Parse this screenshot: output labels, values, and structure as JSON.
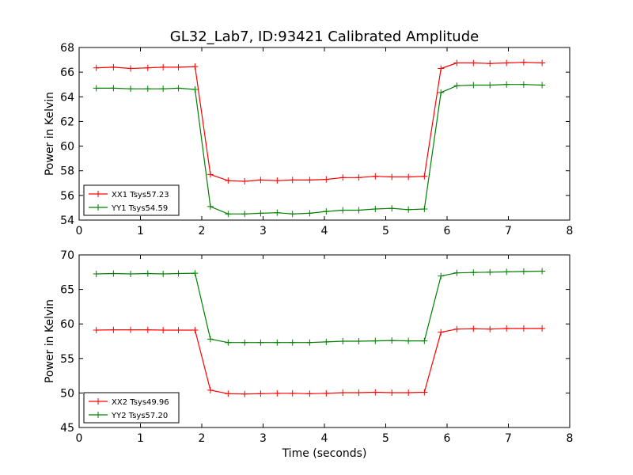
{
  "figure": {
    "title": "GL32_Lab7, ID:93421 Calibrated Amplitude"
  },
  "chart_data": [
    {
      "type": "line",
      "title": "GL32_Lab7, ID:93421 Calibrated Amplitude",
      "xlabel": "",
      "ylabel": "Power in Kelvin",
      "xlim": [
        0,
        8
      ],
      "ylim": [
        54,
        68
      ],
      "xticks": [
        "0",
        "1",
        "2",
        "3",
        "4",
        "5",
        "6",
        "7",
        "8"
      ],
      "yticks": [
        "54",
        "56",
        "58",
        "60",
        "62",
        "64",
        "66",
        "68"
      ],
      "grid": false,
      "legend_position": "lower-left",
      "x": [
        0.28,
        0.56,
        0.84,
        1.12,
        1.37,
        1.62,
        1.89,
        2.14,
        2.43,
        2.7,
        2.96,
        3.23,
        3.48,
        3.76,
        4.03,
        4.3,
        4.56,
        4.83,
        5.1,
        5.37,
        5.63,
        5.9,
        6.16,
        6.43,
        6.7,
        6.97,
        7.25,
        7.55
      ],
      "series": [
        {
          "name": "XX1 Tsys57.23",
          "color": "#ff0000",
          "values": [
            66.35,
            66.4,
            66.3,
            66.35,
            66.4,
            66.4,
            66.45,
            57.7,
            57.2,
            57.15,
            57.25,
            57.2,
            57.25,
            57.25,
            57.3,
            57.45,
            57.45,
            57.55,
            57.5,
            57.5,
            57.55,
            66.3,
            66.75,
            66.75,
            66.7,
            66.75,
            66.8,
            66.75
          ]
        },
        {
          "name": "YY1 Tsys54.59",
          "color": "#008000",
          "values": [
            64.7,
            64.7,
            64.65,
            64.65,
            64.65,
            64.7,
            64.6,
            55.1,
            54.5,
            54.5,
            54.55,
            54.6,
            54.5,
            54.55,
            54.7,
            54.8,
            54.8,
            54.9,
            54.95,
            54.85,
            54.9,
            64.35,
            64.9,
            64.95,
            64.95,
            65.0,
            65.0,
            64.95
          ]
        }
      ]
    },
    {
      "type": "line",
      "title": "",
      "xlabel": "Time (seconds)",
      "ylabel": "Power in Kelvin",
      "xlim": [
        0,
        8
      ],
      "ylim": [
        45,
        70
      ],
      "xticks": [
        "0",
        "1",
        "2",
        "3",
        "4",
        "5",
        "6",
        "7",
        "8"
      ],
      "yticks": [
        "45",
        "50",
        "55",
        "60",
        "65",
        "70"
      ],
      "grid": false,
      "legend_position": "lower-left",
      "x": [
        0.28,
        0.56,
        0.84,
        1.12,
        1.37,
        1.62,
        1.89,
        2.14,
        2.43,
        2.7,
        2.96,
        3.23,
        3.48,
        3.76,
        4.03,
        4.3,
        4.56,
        4.83,
        5.1,
        5.37,
        5.63,
        5.9,
        6.16,
        6.43,
        6.7,
        6.97,
        7.25,
        7.55
      ],
      "series": [
        {
          "name": "XX2 Tsys49.96",
          "color": "#ff0000",
          "values": [
            59.1,
            59.15,
            59.15,
            59.15,
            59.1,
            59.1,
            59.1,
            50.4,
            49.9,
            49.85,
            49.9,
            49.95,
            49.95,
            49.9,
            49.95,
            50.05,
            50.05,
            50.1,
            50.05,
            50.05,
            50.1,
            58.8,
            59.25,
            59.3,
            59.25,
            59.35,
            59.35,
            59.35
          ]
        },
        {
          "name": "YY2 Tsys57.20",
          "color": "#008000",
          "values": [
            67.25,
            67.3,
            67.25,
            67.3,
            67.25,
            67.3,
            67.35,
            57.8,
            57.3,
            57.3,
            57.3,
            57.3,
            57.3,
            57.3,
            57.4,
            57.5,
            57.5,
            57.55,
            57.6,
            57.55,
            57.55,
            66.95,
            67.4,
            67.45,
            67.5,
            67.55,
            67.6,
            67.65
          ]
        }
      ]
    }
  ]
}
